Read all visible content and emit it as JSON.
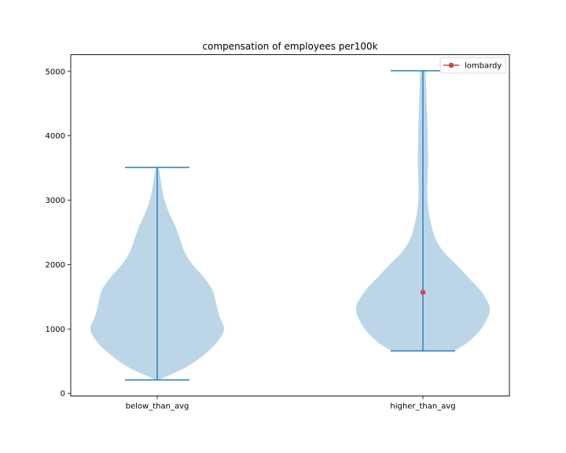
{
  "chart_data": {
    "type": "violin",
    "title": "compensation of employees per100k",
    "xlabel": "",
    "ylabel": "",
    "categories": [
      "below_than_avg",
      "higher_than_avg"
    ],
    "ylim": [
      -40,
      5260
    ],
    "yticks": [
      0,
      1000,
      2000,
      3000,
      4000,
      5000
    ],
    "ytick_labels": [
      "0",
      "1000",
      "2000",
      "3000",
      "4000",
      "5000"
    ],
    "violins": [
      {
        "name": "below_than_avg",
        "min": 210,
        "max": 3510,
        "density": [
          [
            210,
            0.02
          ],
          [
            400,
            0.42
          ],
          [
            600,
            0.7
          ],
          [
            800,
            0.9
          ],
          [
            1000,
            1.0
          ],
          [
            1200,
            0.93
          ],
          [
            1400,
            0.88
          ],
          [
            1600,
            0.83
          ],
          [
            1800,
            0.7
          ],
          [
            2000,
            0.53
          ],
          [
            2200,
            0.41
          ],
          [
            2400,
            0.34
          ],
          [
            2600,
            0.27
          ],
          [
            2800,
            0.18
          ],
          [
            3000,
            0.11
          ],
          [
            3200,
            0.07
          ],
          [
            3400,
            0.04
          ],
          [
            3510,
            0.02
          ]
        ]
      },
      {
        "name": "higher_than_avg",
        "min": 660,
        "max": 5010,
        "density": [
          [
            660,
            0.47
          ],
          [
            800,
            0.68
          ],
          [
            1000,
            0.87
          ],
          [
            1200,
            0.98
          ],
          [
            1300,
            1.0
          ],
          [
            1400,
            0.98
          ],
          [
            1600,
            0.86
          ],
          [
            1800,
            0.68
          ],
          [
            2000,
            0.5
          ],
          [
            2200,
            0.31
          ],
          [
            2400,
            0.19
          ],
          [
            2600,
            0.13
          ],
          [
            2800,
            0.09
          ],
          [
            3000,
            0.07
          ],
          [
            3200,
            0.065
          ],
          [
            3500,
            0.075
          ],
          [
            3800,
            0.075
          ],
          [
            4100,
            0.07
          ],
          [
            4400,
            0.06
          ],
          [
            4700,
            0.05
          ],
          [
            5010,
            0.04
          ]
        ]
      }
    ],
    "points": [
      {
        "series": "lombardy",
        "category": "higher_than_avg",
        "value": 1570
      }
    ],
    "legend": {
      "entries": [
        "lombardy"
      ],
      "position": "upper-right"
    },
    "colors": {
      "violin_fill": "#bcd6e8",
      "violin_line": "#3a86c2",
      "point": "#c84b48",
      "axes": "#000000"
    }
  }
}
